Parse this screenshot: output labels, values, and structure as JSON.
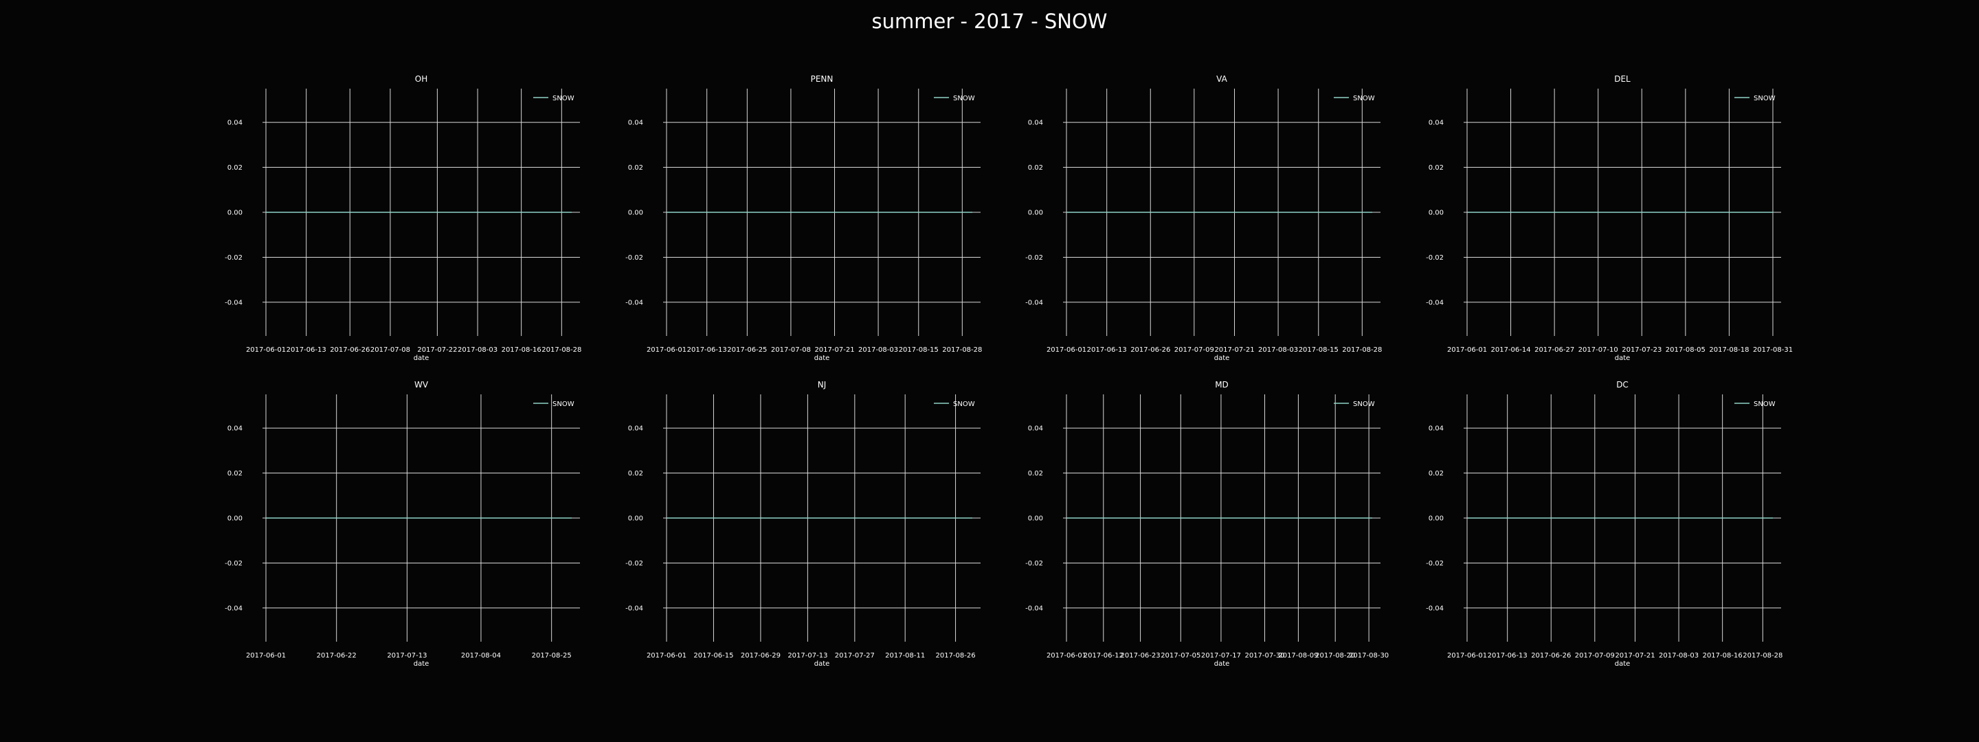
{
  "figure": {
    "suptitle": "summer - 2017 - SNOW",
    "background": "#050505",
    "grid_color": "#d9d9d9",
    "line_color": "#8fd3c6"
  },
  "chart_data": [
    {
      "type": "line",
      "title": "OH",
      "xlabel": "date",
      "ylabel": "",
      "x_range": [
        "2017-06-01",
        "2017-08-31"
      ],
      "x_ticks": [
        "2017-06-01",
        "2017-06-13",
        "2017-06-26",
        "2017-07-08",
        "2017-07-22",
        "2017-08-03",
        "2017-08-16",
        "2017-08-28"
      ],
      "ylim": [
        -0.055,
        0.055
      ],
      "y_ticks": [
        "0.04",
        "0.02",
        "0.00",
        "-0.02",
        "-0.04"
      ],
      "y_tick_values": [
        0.04,
        0.02,
        0.0,
        -0.02,
        -0.04
      ],
      "grid": true,
      "legend_position": "top-right",
      "series": [
        {
          "name": "SNOW",
          "x": [
            "2017-06-01",
            "2017-08-31"
          ],
          "values": [
            0.0,
            0.0
          ]
        }
      ]
    },
    {
      "type": "line",
      "title": "PENN",
      "xlabel": "date",
      "ylabel": "",
      "x_range": [
        "2017-06-01",
        "2017-08-31"
      ],
      "x_ticks": [
        "2017-06-01",
        "2017-06-13",
        "2017-06-25",
        "2017-07-08",
        "2017-07-21",
        "2017-08-03",
        "2017-08-15",
        "2017-08-28"
      ],
      "ylim": [
        -0.055,
        0.055
      ],
      "y_ticks": [
        "0.04",
        "0.02",
        "0.00",
        "-0.02",
        "-0.04"
      ],
      "y_tick_values": [
        0.04,
        0.02,
        0.0,
        -0.02,
        -0.04
      ],
      "grid": true,
      "legend_position": "top-right",
      "series": [
        {
          "name": "SNOW",
          "x": [
            "2017-06-01",
            "2017-08-31"
          ],
          "values": [
            0.0,
            0.0
          ]
        }
      ]
    },
    {
      "type": "line",
      "title": "VA",
      "xlabel": "date",
      "ylabel": "",
      "x_range": [
        "2017-06-01",
        "2017-08-31"
      ],
      "x_ticks": [
        "2017-06-01",
        "2017-06-13",
        "2017-06-26",
        "2017-07-09",
        "2017-07-21",
        "2017-08-03",
        "2017-08-15",
        "2017-08-28"
      ],
      "ylim": [
        -0.055,
        0.055
      ],
      "y_ticks": [
        "0.04",
        "0.02",
        "0.00",
        "-0.02",
        "-0.04"
      ],
      "y_tick_values": [
        0.04,
        0.02,
        0.0,
        -0.02,
        -0.04
      ],
      "grid": true,
      "legend_position": "top-right",
      "series": [
        {
          "name": "SNOW",
          "x": [
            "2017-06-01",
            "2017-08-31"
          ],
          "values": [
            0.0,
            0.0
          ]
        }
      ]
    },
    {
      "type": "line",
      "title": "DEL",
      "xlabel": "date",
      "ylabel": "",
      "x_range": [
        "2017-06-01",
        "2017-08-31"
      ],
      "x_ticks": [
        "2017-06-01",
        "2017-06-14",
        "2017-06-27",
        "2017-07-10",
        "2017-07-23",
        "2017-08-05",
        "2017-08-18",
        "2017-08-31"
      ],
      "ylim": [
        -0.055,
        0.055
      ],
      "y_ticks": [
        "0.04",
        "0.02",
        "0.00",
        "-0.02",
        "-0.04"
      ],
      "y_tick_values": [
        0.04,
        0.02,
        0.0,
        -0.02,
        -0.04
      ],
      "grid": true,
      "legend_position": "top-right",
      "series": [
        {
          "name": "SNOW",
          "x": [
            "2017-06-01",
            "2017-08-31"
          ],
          "values": [
            0.0,
            0.0
          ]
        }
      ]
    },
    {
      "type": "line",
      "title": "WV",
      "xlabel": "date",
      "ylabel": "",
      "x_range": [
        "2017-06-01",
        "2017-08-31"
      ],
      "x_ticks": [
        "2017-06-01",
        "2017-06-22",
        "2017-07-13",
        "2017-08-04",
        "2017-08-25"
      ],
      "ylim": [
        -0.055,
        0.055
      ],
      "y_ticks": [
        "0.04",
        "0.02",
        "0.00",
        "-0.02",
        "-0.04"
      ],
      "y_tick_values": [
        0.04,
        0.02,
        0.0,
        -0.02,
        -0.04
      ],
      "grid": true,
      "legend_position": "top-right",
      "series": [
        {
          "name": "SNOW",
          "x": [
            "2017-06-01",
            "2017-08-31"
          ],
          "values": [
            0.0,
            0.0
          ]
        }
      ]
    },
    {
      "type": "line",
      "title": "NJ",
      "xlabel": "date",
      "ylabel": "",
      "x_range": [
        "2017-06-01",
        "2017-08-31"
      ],
      "x_ticks": [
        "2017-06-01",
        "2017-06-15",
        "2017-06-29",
        "2017-07-13",
        "2017-07-27",
        "2017-08-11",
        "2017-08-26"
      ],
      "ylim": [
        -0.055,
        0.055
      ],
      "y_ticks": [
        "0.04",
        "0.02",
        "0.00",
        "-0.02",
        "-0.04"
      ],
      "y_tick_values": [
        0.04,
        0.02,
        0.0,
        -0.02,
        -0.04
      ],
      "grid": true,
      "legend_position": "top-right",
      "series": [
        {
          "name": "SNOW",
          "x": [
            "2017-06-01",
            "2017-08-31"
          ],
          "values": [
            0.0,
            0.0
          ]
        }
      ]
    },
    {
      "type": "line",
      "title": "MD",
      "xlabel": "date",
      "ylabel": "",
      "x_range": [
        "2017-06-01",
        "2017-08-31"
      ],
      "x_ticks": [
        "2017-06-01",
        "2017-06-12",
        "2017-06-23",
        "2017-07-05",
        "2017-07-17",
        "2017-07-30",
        "2017-08-09",
        "2017-08-20",
        "2017-08-30"
      ],
      "ylim": [
        -0.055,
        0.055
      ],
      "y_ticks": [
        "0.04",
        "0.02",
        "0.00",
        "-0.02",
        "-0.04"
      ],
      "y_tick_values": [
        0.04,
        0.02,
        0.0,
        -0.02,
        -0.04
      ],
      "grid": true,
      "legend_position": "top-right",
      "series": [
        {
          "name": "SNOW",
          "x": [
            "2017-06-01",
            "2017-08-31"
          ],
          "values": [
            0.0,
            0.0
          ]
        }
      ]
    },
    {
      "type": "line",
      "title": "DC",
      "xlabel": "date",
      "ylabel": "",
      "x_range": [
        "2017-06-01",
        "2017-08-31"
      ],
      "x_ticks": [
        "2017-06-01",
        "2017-06-13",
        "2017-06-26",
        "2017-07-09",
        "2017-07-21",
        "2017-08-03",
        "2017-08-16",
        "2017-08-28"
      ],
      "ylim": [
        -0.055,
        0.055
      ],
      "y_ticks": [
        "0.04",
        "0.02",
        "0.00",
        "-0.02",
        "-0.04"
      ],
      "y_tick_values": [
        0.04,
        0.02,
        0.0,
        -0.02,
        -0.04
      ],
      "grid": true,
      "legend_position": "top-right",
      "series": [
        {
          "name": "SNOW",
          "x": [
            "2017-06-01",
            "2017-08-31"
          ],
          "values": [
            0.0,
            0.0
          ]
        }
      ]
    }
  ]
}
